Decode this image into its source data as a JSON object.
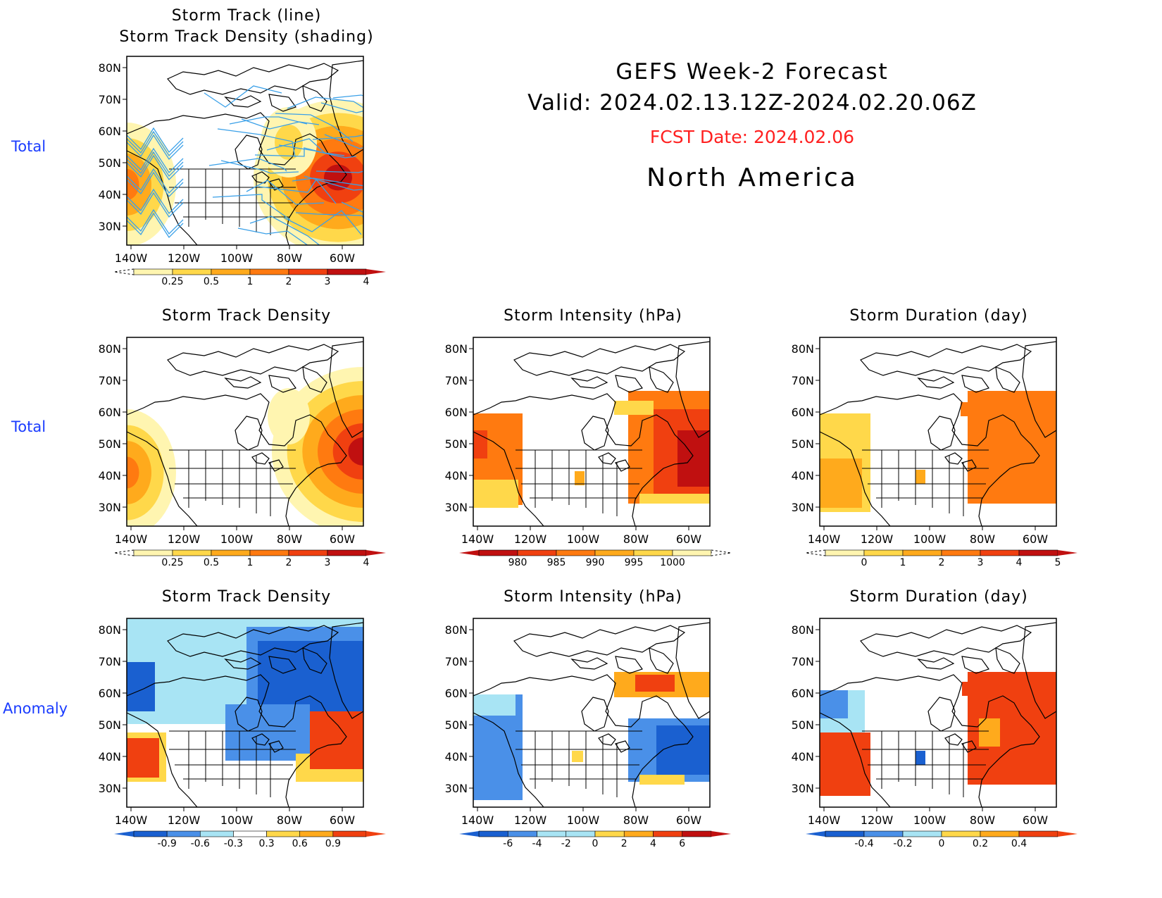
{
  "header": {
    "title": "GEFS Week-2 Forecast",
    "valid": "Valid: 2024.02.13.12Z-2024.02.20.06Z",
    "fcst_date": "FCST Date: 2024.02.06",
    "region": "North America"
  },
  "row_labels": {
    "row1": "Total",
    "row2": "Total",
    "row3": "Anomaly"
  },
  "axes": {
    "lat_labels": [
      "80N",
      "70N",
      "60N",
      "50N",
      "40N",
      "30N"
    ],
    "lon_labels": [
      "140W",
      "120W",
      "100W",
      "80W",
      "60W"
    ]
  },
  "panels": {
    "track": {
      "title_line1": "Storm Track (line)",
      "title_line2": "Storm Track Density (shading)",
      "colorbar_labels": [
        "0.25",
        "0.5",
        "1",
        "2",
        "3",
        "4"
      ]
    },
    "density_total": {
      "title": "Storm Track Density",
      "colorbar_labels": [
        "0.25",
        "0.5",
        "1",
        "2",
        "3",
        "4"
      ]
    },
    "intensity_total": {
      "title": "Storm Intensity (hPa)",
      "colorbar_labels": [
        "980",
        "985",
        "990",
        "995",
        "1000"
      ]
    },
    "duration_total": {
      "title": "Storm Duration (day)",
      "colorbar_labels": [
        "0",
        "1",
        "2",
        "3",
        "4",
        "5"
      ]
    },
    "density_anom": {
      "title": "Storm Track Density",
      "colorbar_labels": [
        "-0.9",
        "-0.6",
        "-0.3",
        "0.3",
        "0.6",
        "0.9"
      ]
    },
    "intensity_anom": {
      "title": "Storm Intensity (hPa)",
      "colorbar_labels": [
        "-6",
        "-4",
        "-2",
        "0",
        "2",
        "4",
        "6"
      ]
    },
    "duration_anom": {
      "title": "Storm Duration (day)",
      "colorbar_labels": [
        "-0.4",
        "-0.2",
        "0",
        "0.2",
        "0.4"
      ]
    }
  },
  "colors": {
    "track_line": "#3aa0e8",
    "label_blue": "#1a3cff",
    "fcst_red": "#ff2020",
    "warm_scale": [
      "#fff5b0",
      "#ffd84a",
      "#ffaa1c",
      "#ff7a10",
      "#f04010",
      "#c01010"
    ],
    "cool_scale": [
      "#1a60d0",
      "#4a90e8",
      "#a8e4f4"
    ]
  }
}
